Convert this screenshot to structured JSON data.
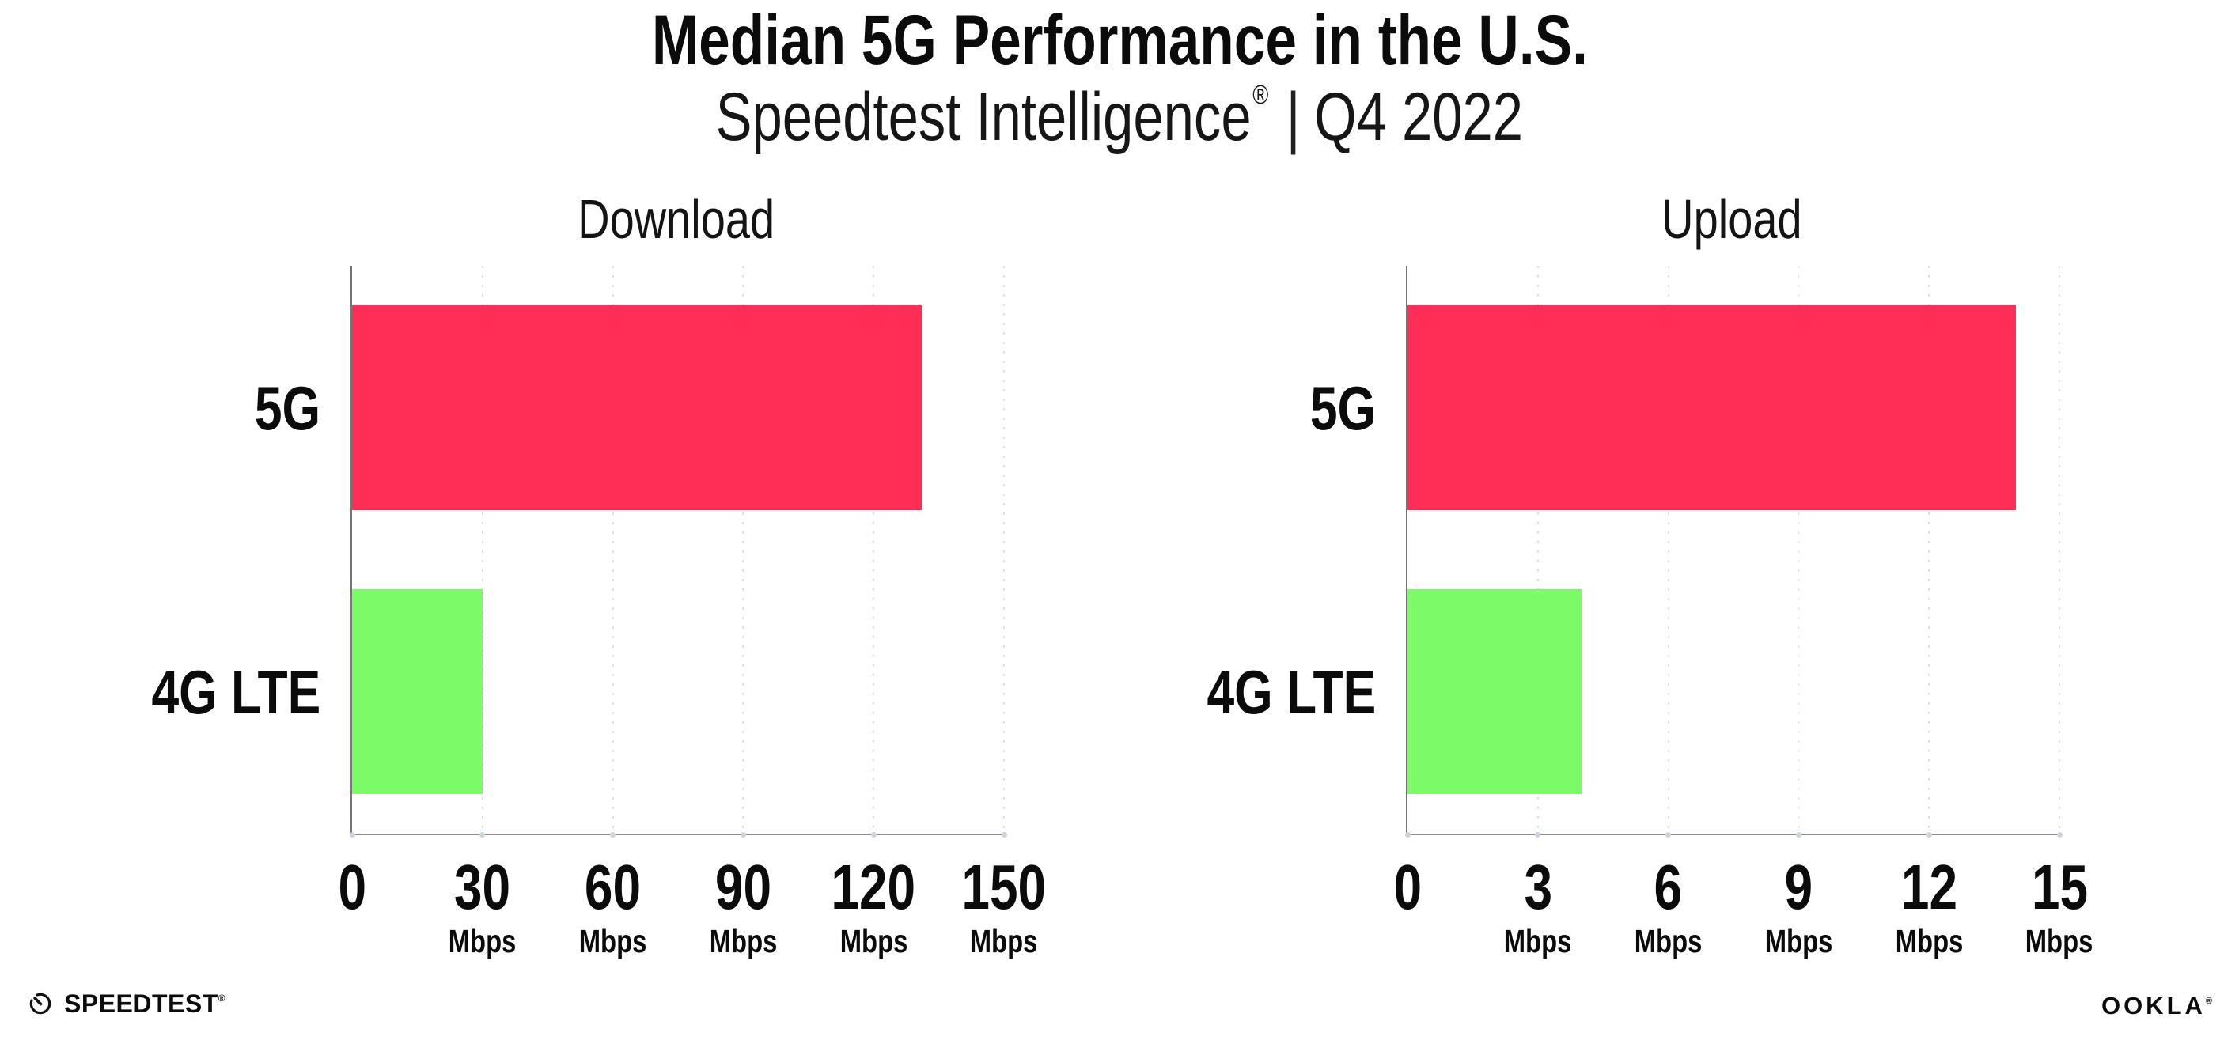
{
  "header": {
    "title": "Median 5G Performance in the U.S.",
    "subtitle_brand": "Speedtest Intelligence",
    "subtitle_reg": "®",
    "subtitle_separator": "|",
    "subtitle_period": "Q4 2022"
  },
  "colors": {
    "bar_5g": "#FF2E56",
    "bar_4g_lte": "#7DFA68",
    "axis_y": "#767676",
    "axis_x": "#8F8F8F",
    "gridline": "#DDE0E9",
    "tick_dot": "#CCD2E0",
    "text": "#0B0B0B"
  },
  "chart_data": [
    {
      "type": "bar",
      "orientation": "horizontal",
      "title": "Download",
      "categories": [
        "5G",
        "4G LTE"
      ],
      "values": [
        131,
        30
      ],
      "unit": "Mbps",
      "series_colors": [
        "#FF2E56",
        "#7DFA68"
      ],
      "xlim": [
        0,
        150
      ],
      "ticks": [
        0,
        30,
        60,
        90,
        120,
        150
      ],
      "grid": "vertical-dotted",
      "legend": false
    },
    {
      "type": "bar",
      "orientation": "horizontal",
      "title": "Upload",
      "categories": [
        "5G",
        "4G LTE"
      ],
      "values": [
        14,
        4
      ],
      "unit": "Mbps",
      "series_colors": [
        "#FF2E56",
        "#7DFA68"
      ],
      "xlim": [
        0,
        15
      ],
      "ticks": [
        0,
        3,
        6,
        9,
        12,
        15
      ],
      "grid": "vertical-dotted",
      "legend": false
    }
  ],
  "footer": {
    "speedtest_label": "SPEEDTEST",
    "speedtest_reg": "®",
    "speedtest_icon": "speedtest-gauge-icon",
    "ookla_label": "OOKLA",
    "ookla_reg": "®"
  }
}
